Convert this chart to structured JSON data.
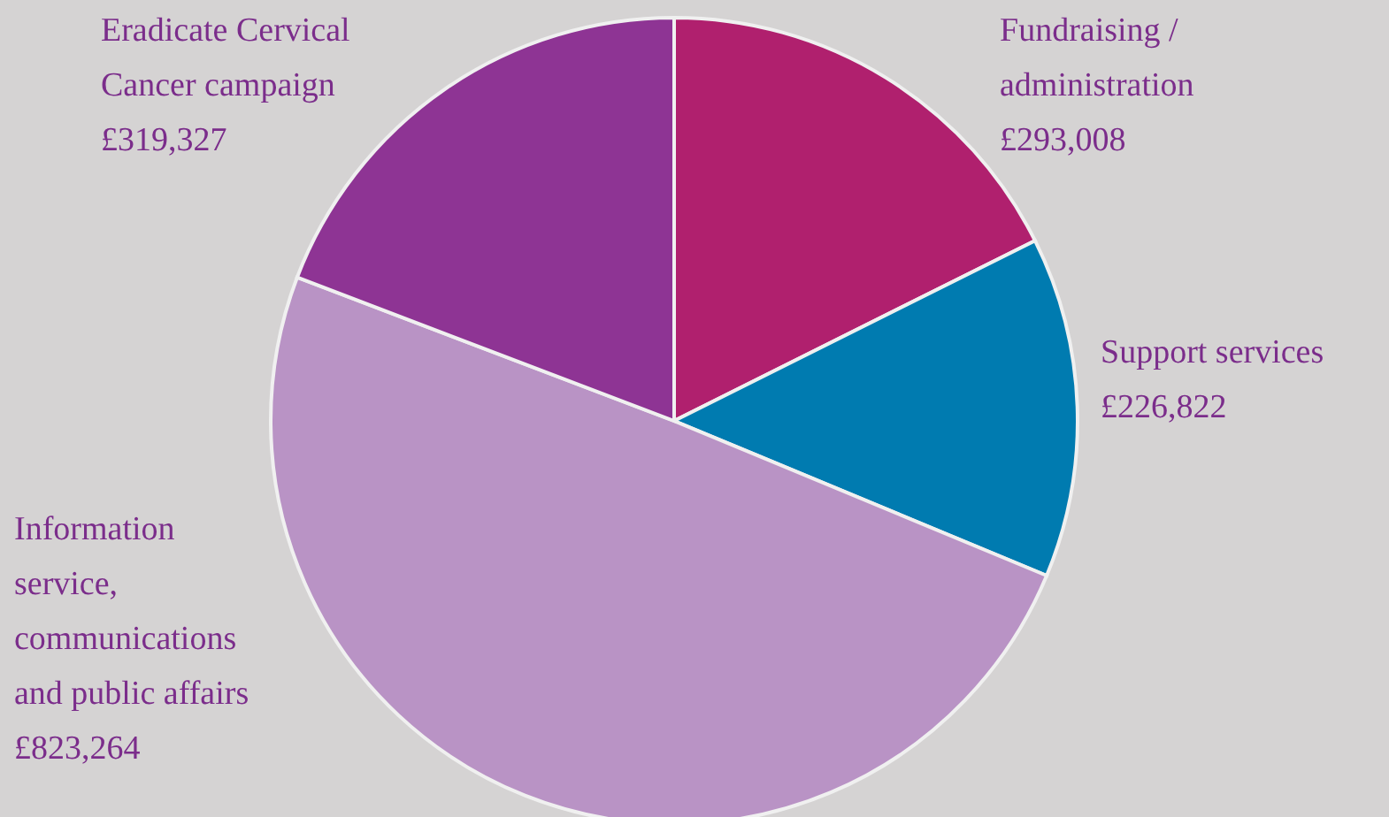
{
  "chart_data": {
    "type": "pie",
    "categories": [
      "Fundraising /\nadministration",
      "Support services",
      "Information\nservice,\ncommunications\nand public affairs",
      "Eradicate Cervical\nCancer campaign"
    ],
    "values": [
      293008,
      226822,
      823264,
      319327
    ],
    "colors": [
      "#b0206e",
      "#007bb0",
      "#b993c5",
      "#8e3494"
    ],
    "value_labels": [
      "£293,008",
      "£226,822",
      "£823,264",
      "£319,327"
    ]
  }
}
